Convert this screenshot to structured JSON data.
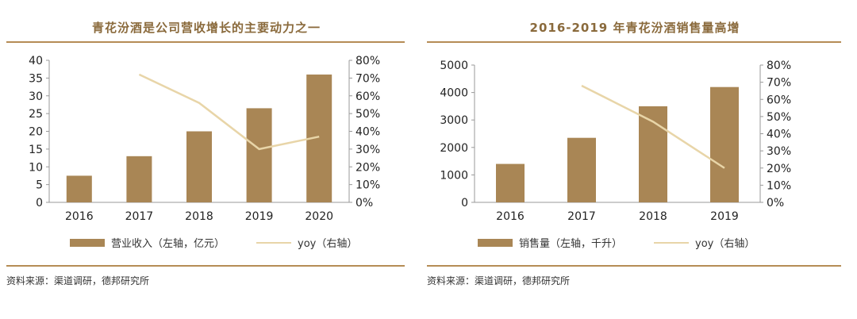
{
  "left": {
    "title": "青花汾酒是公司营收增长的主要动力之一",
    "source": "资料来源：渠道调研，德邦研究所",
    "legend_bar": "营业收入（左轴，亿元）",
    "legend_line": "yoy（右轴）"
  },
  "right": {
    "title": "2016-2019 年青花汾酒销售量高增",
    "source": "资料来源：渠道调研，德邦研究所",
    "legend_bar": "销售量（左轴，千升）",
    "legend_line": "yoy（右轴）"
  },
  "colors": {
    "bar": "#a98655",
    "line": "#e8d5a8",
    "axis": "#999999",
    "rule": "#b58c55"
  },
  "chart_data": [
    {
      "type": "bar",
      "title": "青花汾酒是公司营收增长的主要动力之一",
      "categories": [
        "2016",
        "2017",
        "2018",
        "2019",
        "2020"
      ],
      "series": [
        {
          "name": "营业收入（左轴，亿元）",
          "type": "bar",
          "axis": "left",
          "values": [
            7.5,
            13,
            20,
            26.5,
            36
          ]
        },
        {
          "name": "yoy（右轴）",
          "type": "line",
          "axis": "right",
          "values": [
            null,
            0.72,
            0.56,
            0.3,
            0.37
          ]
        }
      ],
      "ylim_left": [
        0,
        40
      ],
      "yticks_left": [
        "0",
        "5",
        "10",
        "15",
        "20",
        "25",
        "30",
        "35",
        "40"
      ],
      "ylim_right": [
        0,
        0.8
      ],
      "yticks_right": [
        "0%",
        "10%",
        "20%",
        "30%",
        "40%",
        "50%",
        "60%",
        "70%",
        "80%"
      ],
      "legend": "bottom"
    },
    {
      "type": "bar",
      "title": "2016-2019 年青花汾酒销售量高增",
      "categories": [
        "2016",
        "2017",
        "2018",
        "2019"
      ],
      "series": [
        {
          "name": "销售量（左轴，千升）",
          "type": "bar",
          "axis": "left",
          "values": [
            1400,
            2350,
            3500,
            4200
          ]
        },
        {
          "name": "yoy（右轴）",
          "type": "line",
          "axis": "right",
          "values": [
            null,
            0.68,
            0.47,
            0.2
          ]
        }
      ],
      "ylim_left": [
        0,
        5000
      ],
      "yticks_left": [
        "0",
        "1000",
        "2000",
        "3000",
        "4000",
        "5000"
      ],
      "ylim_right": [
        0,
        0.8
      ],
      "yticks_right": [
        "0%",
        "10%",
        "20%",
        "30%",
        "40%",
        "50%",
        "60%",
        "70%",
        "80%"
      ],
      "legend": "bottom"
    }
  ]
}
